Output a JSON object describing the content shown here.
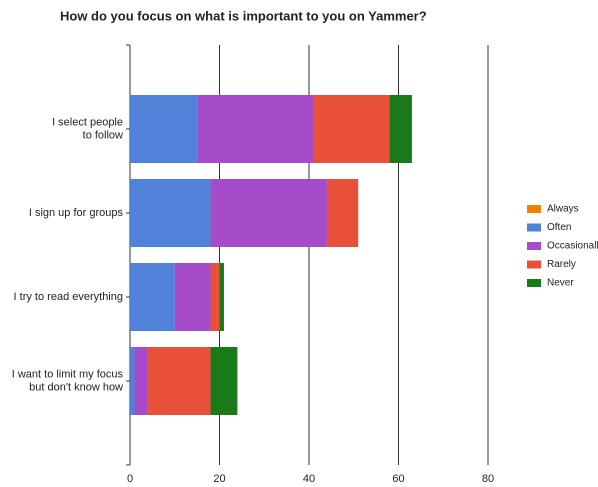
{
  "chart_data": {
    "type": "bar",
    "orientation": "horizontal",
    "stacked": true,
    "title": "How do you focus on what is important to you on Yammer?",
    "categories": [
      "I select people\nto follow",
      "I sign up for groups",
      "I try to read everything",
      "I want to limit my focus\nbut don't know how"
    ],
    "series": [
      {
        "name": "Always",
        "color": "#f08000",
        "values": [
          0,
          0,
          0,
          0
        ]
      },
      {
        "name": "Often",
        "color": "#4f82d8",
        "values": [
          15,
          18,
          10,
          1
        ]
      },
      {
        "name": "Occasionally",
        "color": "#a64ccb",
        "values": [
          26,
          26,
          8,
          3
        ]
      },
      {
        "name": "Rarely",
        "color": "#e8503a",
        "values": [
          17,
          7,
          2,
          14
        ]
      },
      {
        "name": "Never",
        "color": "#1a7a1a",
        "values": [
          5,
          0,
          1,
          6
        ]
      }
    ],
    "xlim": [
      0,
      80
    ],
    "xticks": [
      0,
      20,
      40,
      60,
      80
    ],
    "grid": true,
    "legend": "right"
  }
}
